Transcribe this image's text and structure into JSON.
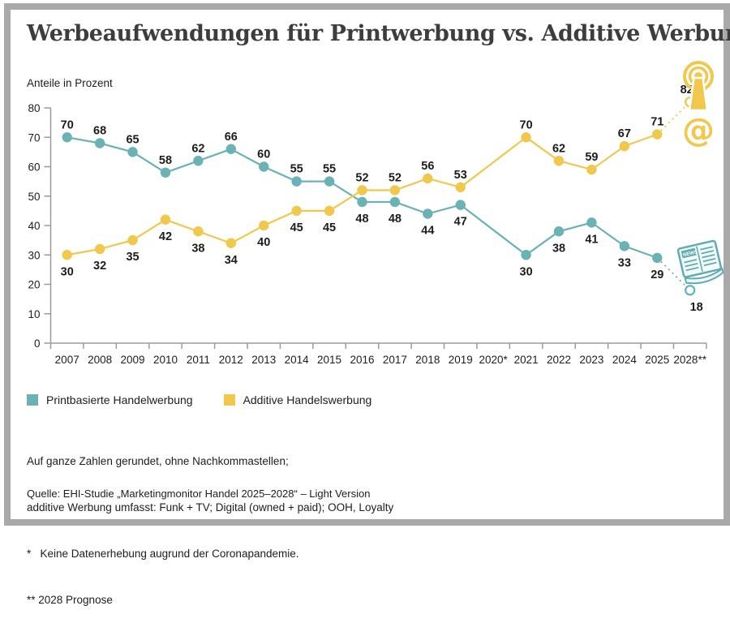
{
  "header": {
    "title": "Werbeaufwendungen für Printwerbung vs. Additive Werbung",
    "subtitle": "Anteile in Prozent"
  },
  "legend": {
    "items": [
      {
        "label": "Printbasierte Handelwerbung",
        "color": "#6bb2b4"
      },
      {
        "label": "Additive Handelswerbung",
        "color": "#f0c84d"
      }
    ]
  },
  "footnotes": {
    "lines": [
      "Auf ganze Zahlen gerundet, ohne Nachkommastellen;",
      "additive Werbung umfasst: Funk + TV; Digital (owned + paid); OOH, Loyalty",
      "*   Keine Datenerhebung augrund der Coronapandemie.",
      "** 2028 Prognose"
    ]
  },
  "source": "Quelle: EHI-Studie „Marketingmonitor Handel 2025–2028“ – Light Version",
  "icons": {
    "broadcast": "broadcast-tower-icon",
    "at_symbol": "@",
    "newspaper": "newspaper-icon",
    "news_label": "NEWS"
  },
  "chart_data": {
    "type": "line",
    "title": "Werbeaufwendungen für Printwerbung vs. Additive Werbung",
    "ylabel": "Anteile in Prozent",
    "xlabel": "",
    "categories": [
      "2007",
      "2008",
      "2009",
      "2010",
      "2011",
      "2012",
      "2013",
      "2014",
      "2015",
      "2016",
      "2017",
      "2018",
      "2019",
      "2020*",
      "2021",
      "2022",
      "2023",
      "2024",
      "2025",
      "2028**"
    ],
    "series": [
      {
        "name": "Printbasierte Handelwerbung",
        "color": "#6bb2b4",
        "values": [
          70,
          68,
          65,
          58,
          62,
          66,
          60,
          55,
          55,
          48,
          48,
          44,
          47,
          null,
          30,
          38,
          41,
          33,
          29,
          18
        ]
      },
      {
        "name": "Additive Handelswerbung",
        "color": "#f0c84d",
        "values": [
          30,
          32,
          35,
          42,
          38,
          34,
          40,
          45,
          45,
          52,
          52,
          56,
          53,
          null,
          70,
          62,
          59,
          67,
          71,
          82
        ]
      }
    ],
    "ylim": [
      0,
      80
    ],
    "ytick_step": 10,
    "grid": false,
    "gap_category": "2020*",
    "projection_category": "2028**",
    "legend_position": "bottom",
    "data_labels": true
  }
}
